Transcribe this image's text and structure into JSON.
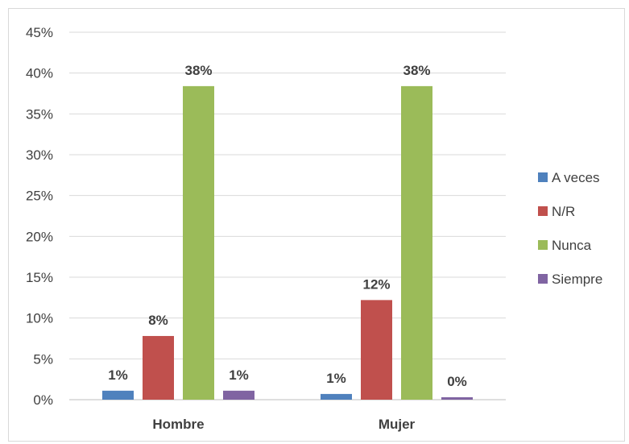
{
  "chart_data": {
    "type": "bar",
    "categories": [
      "Hombre",
      "Mujer"
    ],
    "series": [
      {
        "name": "A veces",
        "color": "#4f81bd",
        "values": [
          1.1,
          0.7
        ],
        "labels": [
          "1%",
          "1%"
        ]
      },
      {
        "name": "N/R",
        "color": "#c0504d",
        "values": [
          7.8,
          12.2
        ],
        "labels": [
          "8%",
          "12%"
        ]
      },
      {
        "name": "Nunca",
        "color": "#9bbb59",
        "values": [
          38.4,
          38.4
        ],
        "labels": [
          "38%",
          "38%"
        ]
      },
      {
        "name": "Siempre",
        "color": "#8064a2",
        "values": [
          1.1,
          0.3
        ],
        "labels": [
          "1%",
          "0%"
        ]
      }
    ],
    "yticks": [
      "0%",
      "5%",
      "10%",
      "15%",
      "20%",
      "25%",
      "30%",
      "35%",
      "40%",
      "45%"
    ],
    "ylim": [
      0,
      45
    ],
    "grid": true,
    "legend_position": "right"
  }
}
